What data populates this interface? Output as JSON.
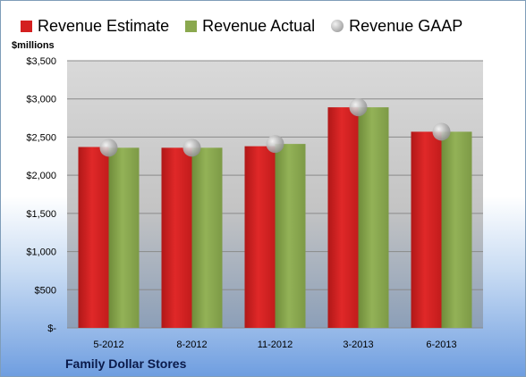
{
  "chart_data": {
    "type": "bar",
    "ylabel": "$millions",
    "categories": [
      "5-2012",
      "8-2012",
      "11-2012",
      "3-2013",
      "6-2013"
    ],
    "series": [
      {
        "name": "Revenue Estimate",
        "kind": "bar",
        "color": "#d42020",
        "values": [
          2370,
          2360,
          2380,
          2890,
          2570
        ]
      },
      {
        "name": "Revenue Actual",
        "kind": "bar",
        "color": "#8aa84e",
        "values": [
          2360,
          2360,
          2410,
          2890,
          2570
        ]
      },
      {
        "name": "Revenue GAAP",
        "kind": "marker",
        "color": "#b0b0b0",
        "values": [
          2360,
          2360,
          2410,
          2890,
          2570
        ]
      }
    ],
    "ylim": [
      0,
      3500
    ],
    "yticks": [
      0,
      500,
      1000,
      1500,
      2000,
      2500,
      3000,
      3500
    ],
    "ytick_labels": [
      "$-",
      "$500",
      "$1,000",
      "$1,500",
      "$2,000",
      "$2,500",
      "$3,000",
      "$3,500"
    ],
    "grid": true,
    "legend_position": "top"
  },
  "footer": {
    "company": "Family Dollar Stores"
  }
}
